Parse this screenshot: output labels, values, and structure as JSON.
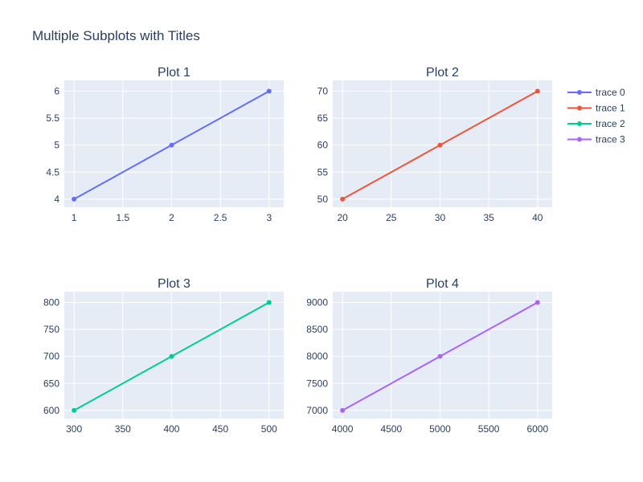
{
  "title": "Multiple Subplots with Titles",
  "colors": {
    "plot_bg": "#e5ecf6",
    "grid": "#ffffff",
    "text": "#2a3f5f"
  },
  "chart_data": [
    {
      "type": "line",
      "title": "Plot 1",
      "series": [
        {
          "name": "trace 0",
          "color": "#636efa",
          "x": [
            1,
            2,
            3
          ],
          "y": [
            4,
            5,
            6
          ]
        }
      ],
      "xticks": [
        "1",
        "1.5",
        "2",
        "2.5",
        "3"
      ],
      "yticks": [
        "4",
        "4.5",
        "5",
        "5.5",
        "6"
      ],
      "xlim": [
        0.9,
        3.15
      ],
      "ylim": [
        3.85,
        6.2
      ],
      "grid": true
    },
    {
      "type": "line",
      "title": "Plot 2",
      "series": [
        {
          "name": "trace 1",
          "color": "#ef553b",
          "x": [
            20,
            30,
            40
          ],
          "y": [
            50,
            60,
            70
          ]
        }
      ],
      "xticks": [
        "20",
        "25",
        "30",
        "35",
        "40"
      ],
      "yticks": [
        "50",
        "55",
        "60",
        "65",
        "70"
      ],
      "xlim": [
        19,
        41.5
      ],
      "ylim": [
        48.5,
        72
      ],
      "grid": true
    },
    {
      "type": "line",
      "title": "Plot 3",
      "series": [
        {
          "name": "trace 2",
          "color": "#00cc96",
          "x": [
            300,
            400,
            500
          ],
          "y": [
            600,
            700,
            800
          ]
        }
      ],
      "xticks": [
        "300",
        "350",
        "400",
        "450",
        "500"
      ],
      "yticks": [
        "600",
        "650",
        "700",
        "750",
        "800"
      ],
      "xlim": [
        290,
        515
      ],
      "ylim": [
        585,
        820
      ],
      "grid": true
    },
    {
      "type": "line",
      "title": "Plot 4",
      "series": [
        {
          "name": "trace 3",
          "color": "#ab63fa",
          "x": [
            4000,
            5000,
            6000
          ],
          "y": [
            7000,
            8000,
            9000
          ]
        }
      ],
      "xticks": [
        "4000",
        "4500",
        "5000",
        "5500",
        "6000"
      ],
      "yticks": [
        "7000",
        "7500",
        "8000",
        "8500",
        "9000"
      ],
      "xlim": [
        3900,
        6150
      ],
      "ylim": [
        6850,
        9200
      ],
      "grid": true
    }
  ],
  "legend": {
    "placement": "top-right",
    "items": [
      {
        "name": "trace 0",
        "color": "#636efa"
      },
      {
        "name": "trace 1",
        "color": "#ef553b"
      },
      {
        "name": "trace 2",
        "color": "#00cc96"
      },
      {
        "name": "trace 3",
        "color": "#ab63fa"
      }
    ]
  }
}
